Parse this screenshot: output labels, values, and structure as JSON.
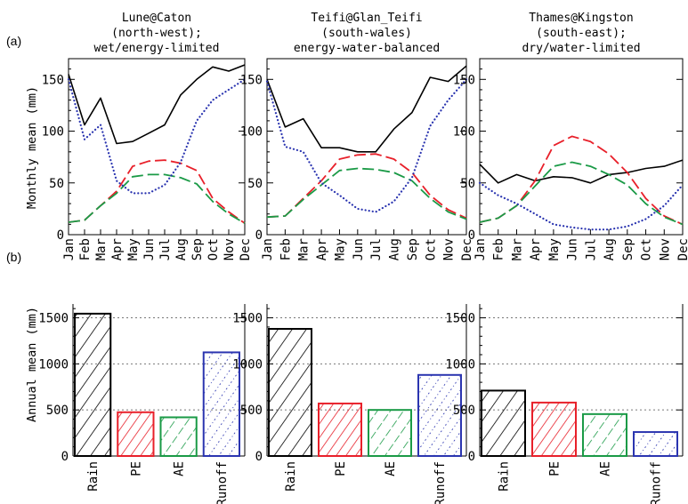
{
  "figure": {
    "panel_a_label": "(a)",
    "panel_b_label": "(b)",
    "ylabel_a": "Monthly mean (mm)",
    "ylabel_b": "Annual mean (mm)"
  },
  "colors": {
    "Rain": "#000000",
    "PE": "#e8202a",
    "AE": "#1a9a46",
    "Runoff": "#2b35b0"
  },
  "chart_data": [
    {
      "type": "line",
      "catchment": "Lune@Caton",
      "title": [
        "Lune@Caton",
        "(north-west);",
        "wet/energy-limited"
      ],
      "categories": [
        "Jan",
        "Feb",
        "Mar",
        "Apr",
        "May",
        "Jun",
        "Jul",
        "Aug",
        "Sep",
        "Oct",
        "Nov",
        "Dec"
      ],
      "ylim": [
        0,
        170
      ],
      "yticks": [
        0,
        50,
        100,
        150
      ],
      "series": [
        {
          "key": "Rain",
          "style": "solid",
          "values": [
            155,
            106,
            132,
            88,
            90,
            98,
            106,
            135,
            150,
            162,
            158,
            164
          ]
        },
        {
          "key": "PE",
          "style": "dash",
          "values": [
            12,
            14,
            28,
            42,
            66,
            71,
            72,
            69,
            62,
            35,
            22,
            11
          ]
        },
        {
          "key": "AE",
          "style": "dash",
          "values": [
            12,
            14,
            28,
            40,
            56,
            58,
            58,
            55,
            49,
            32,
            20,
            11
          ]
        },
        {
          "key": "Runoff",
          "style": "dot",
          "values": [
            150,
            92,
            106,
            52,
            40,
            40,
            48,
            70,
            110,
            130,
            140,
            150
          ]
        }
      ]
    },
    {
      "type": "line",
      "catchment": "Teifi@Glan_Teifi",
      "title": [
        "Teifi@Glan_Teifi",
        "(south-wales)",
        "energy-water-balanced"
      ],
      "categories": [
        "Jan",
        "Feb",
        "Mar",
        "Apr",
        "May",
        "Jun",
        "Jul",
        "Aug",
        "Sep",
        "Oct",
        "Nov",
        "Dec"
      ],
      "ylim": [
        0,
        170
      ],
      "yticks": [
        0,
        50,
        100,
        150
      ],
      "series": [
        {
          "key": "Rain",
          "style": "solid",
          "values": [
            150,
            104,
            112,
            84,
            84,
            80,
            80,
            102,
            118,
            152,
            148,
            163
          ]
        },
        {
          "key": "PE",
          "style": "dash",
          "values": [
            17,
            18,
            35,
            52,
            73,
            77,
            78,
            73,
            60,
            38,
            24,
            16
          ]
        },
        {
          "key": "AE",
          "style": "dash",
          "values": [
            17,
            18,
            34,
            48,
            62,
            64,
            63,
            60,
            52,
            35,
            22,
            15
          ]
        },
        {
          "key": "Runoff",
          "style": "dot",
          "values": [
            148,
            85,
            80,
            50,
            38,
            25,
            22,
            32,
            55,
            105,
            130,
            150
          ]
        }
      ]
    },
    {
      "type": "line",
      "catchment": "Thames@Kingston",
      "title": [
        "Thames@Kingston",
        "(south-east);",
        "dry/water-limited"
      ],
      "categories": [
        "Jan",
        "Feb",
        "Mar",
        "Apr",
        "May",
        "Jun",
        "Jul",
        "Aug",
        "Sep",
        "Oct",
        "Nov",
        "Dec"
      ],
      "ylim": [
        0,
        170
      ],
      "yticks": [
        0,
        50,
        100,
        150
      ],
      "series": [
        {
          "key": "Rain",
          "style": "solid",
          "values": [
            68,
            50,
            58,
            52,
            56,
            55,
            50,
            58,
            60,
            64,
            66,
            72
          ]
        },
        {
          "key": "PE",
          "style": "dash",
          "values": [
            12,
            16,
            28,
            52,
            86,
            95,
            90,
            78,
            60,
            35,
            18,
            10
          ]
        },
        {
          "key": "AE",
          "style": "dash",
          "values": [
            12,
            16,
            28,
            47,
            66,
            70,
            66,
            58,
            48,
            30,
            17,
            10
          ]
        },
        {
          "key": "Runoff",
          "style": "dot",
          "values": [
            50,
            38,
            30,
            20,
            10,
            7,
            5,
            5,
            8,
            15,
            28,
            48
          ]
        }
      ]
    },
    {
      "type": "bar",
      "catchment": "Lune@Caton",
      "categories": [
        "Rain",
        "PE",
        "AE",
        "Runoff"
      ],
      "values": [
        1545,
        475,
        420,
        1125
      ],
      "ylim": [
        0,
        1650
      ],
      "yticks": [
        0,
        500,
        1000,
        1500
      ]
    },
    {
      "type": "bar",
      "catchment": "Teifi@Glan_Teifi",
      "categories": [
        "Rain",
        "PE",
        "AE",
        "Runoff"
      ],
      "values": [
        1380,
        570,
        500,
        880
      ],
      "ylim": [
        0,
        1650
      ],
      "yticks": [
        0,
        500,
        1000,
        1500
      ]
    },
    {
      "type": "bar",
      "catchment": "Thames@Kingston",
      "categories": [
        "Rain",
        "PE",
        "AE",
        "Runoff"
      ],
      "values": [
        710,
        580,
        455,
        260
      ],
      "ylim": [
        0,
        1650
      ],
      "yticks": [
        0,
        500,
        1000,
        1500
      ]
    }
  ]
}
